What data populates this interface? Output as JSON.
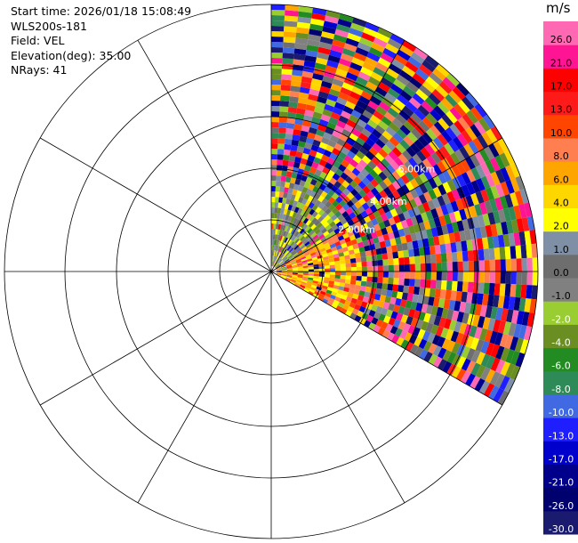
{
  "info": {
    "start_time": "Start time: 2026/01/18 15:08:49",
    "instrument": "WLS200s-181",
    "field": "Field: VEL",
    "elevation": "Elevation(deg): 35.00",
    "nrays": "NRays: 41"
  },
  "chart_data": {
    "type": "heatmap",
    "projection": "polar-ppi",
    "field": "VEL",
    "unit": "m/s",
    "scan_sector_deg": [
      0,
      120
    ],
    "range_ring_labels": [
      "2.00km",
      "4.00km",
      "6.00km"
    ],
    "colorbar": {
      "unit": "m/s",
      "levels": [
        "-30.0",
        "-26.0",
        "-21.0",
        "-17.0",
        "-13.0",
        "-10.0",
        "-8.0",
        "-6.0",
        "-4.0",
        "-2.0",
        "-1.0",
        "0.0",
        "1.0",
        "2.0",
        "4.0",
        "6.0",
        "8.0",
        "10.0",
        "13.0",
        "17.0",
        "21.0",
        "26.0"
      ],
      "colors": [
        "#1a1a6e",
        "#00006e",
        "#00008b",
        "#0000cd",
        "#1e1eff",
        "#4169e1",
        "#2e8b57",
        "#228b22",
        "#6b8e23",
        "#9acd32",
        "#808080",
        "#6e6e6e",
        "#7f8fa6",
        "#ffff00",
        "#ffd700",
        "#ffa500",
        "#ff7f50",
        "#ff4500",
        "#ff1a1a",
        "#ff0000",
        "#ff1493",
        "#ff69b4"
      ]
    }
  }
}
